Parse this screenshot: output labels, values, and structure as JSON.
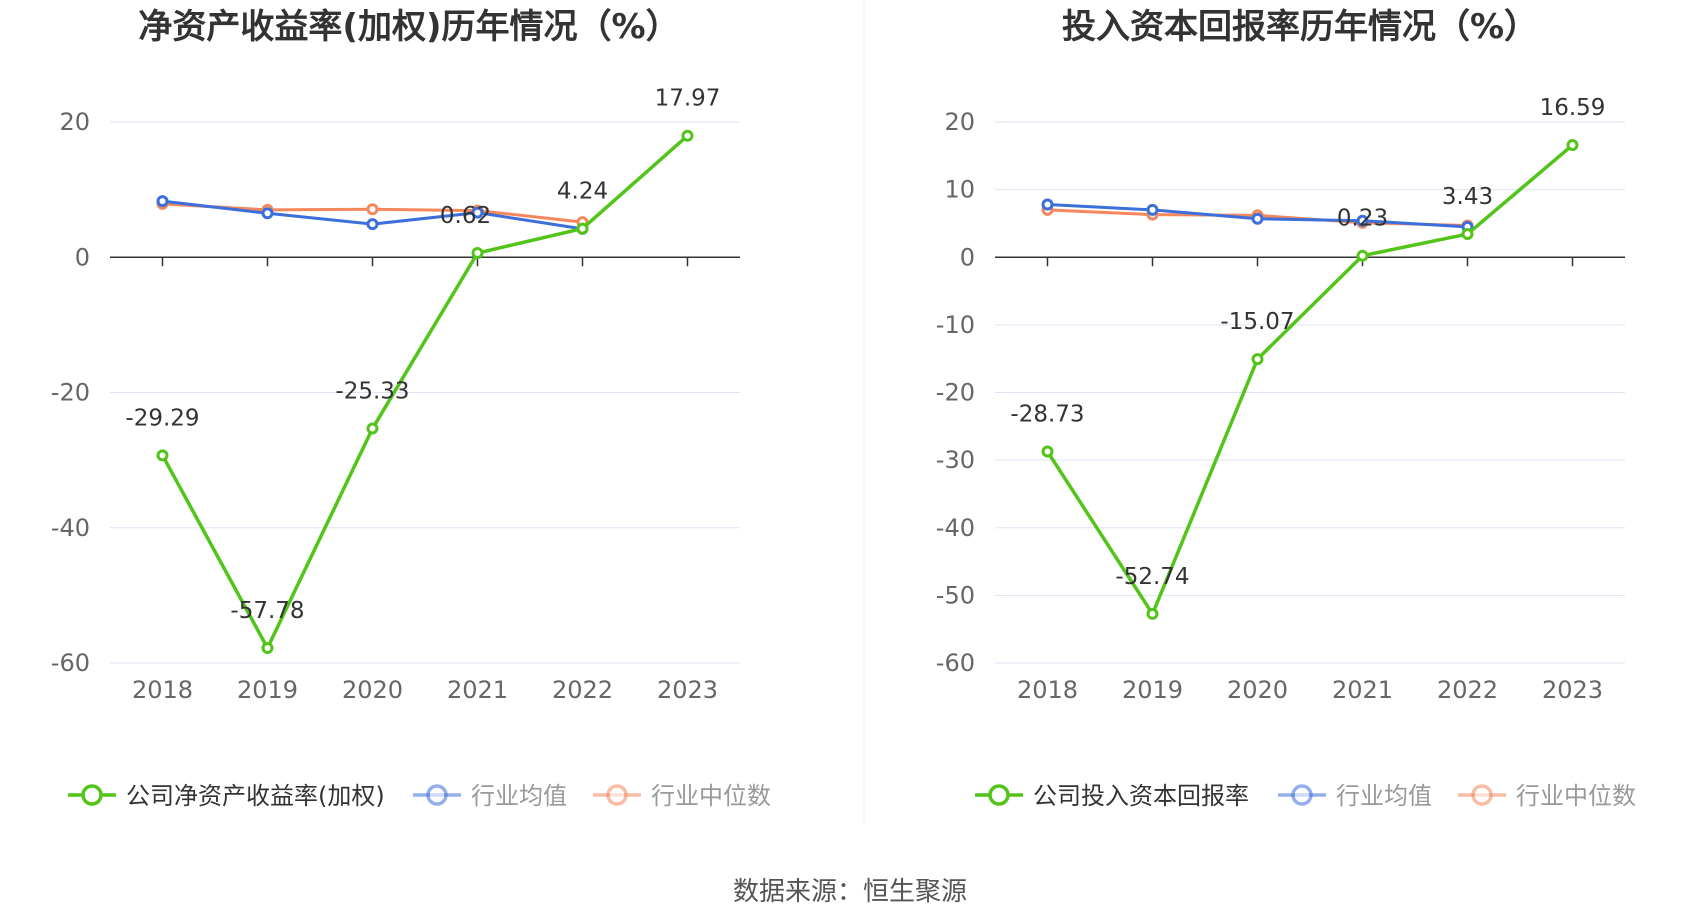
{
  "source_text": "数据来源：恒生聚源",
  "colors": {
    "company": "#52c41a",
    "average": "#3d6fdb",
    "median": "#f5875c",
    "grid": "#dde3f0",
    "axis": "#333333"
  },
  "chart_data": [
    {
      "type": "line",
      "title": "净资产收益率(加权)历年情况（%）",
      "categories": [
        "2018",
        "2019",
        "2020",
        "2021",
        "2022",
        "2023"
      ],
      "ylim": [
        -60,
        20
      ],
      "yticks": [
        20,
        0,
        -20,
        -40,
        -60
      ],
      "grid": true,
      "legend_position": "bottom",
      "series": [
        {
          "name": "公司净资产收益率(加权)",
          "color": "#52c41a",
          "values": [
            -29.29,
            -57.78,
            -25.33,
            0.62,
            4.24,
            17.97
          ],
          "labels": [
            "-29.29",
            "-57.78",
            "-25.33",
            "0.62",
            "4.24",
            "17.97"
          ]
        },
        {
          "name": "行业均值",
          "color": "#3d6fdb",
          "values": [
            8.3,
            6.5,
            4.9,
            6.6,
            4.2,
            null
          ]
        },
        {
          "name": "行业中位数",
          "color": "#f5875c",
          "values": [
            7.9,
            7.0,
            7.1,
            6.9,
            5.2,
            null
          ]
        }
      ]
    },
    {
      "type": "line",
      "title": "投入资本回报率历年情况（%）",
      "categories": [
        "2018",
        "2019",
        "2020",
        "2021",
        "2022",
        "2023"
      ],
      "ylim": [
        -60,
        20
      ],
      "yticks": [
        20,
        10,
        0,
        -10,
        -20,
        -30,
        -40,
        -50,
        -60
      ],
      "grid": true,
      "legend_position": "bottom",
      "series": [
        {
          "name": "公司投入资本回报率",
          "color": "#52c41a",
          "values": [
            -28.73,
            -52.74,
            -15.07,
            0.23,
            3.43,
            16.59
          ],
          "labels": [
            "-28.73",
            "-52.74",
            "-15.07",
            "0.23",
            "3.43",
            "16.59"
          ]
        },
        {
          "name": "行业均值",
          "color": "#3d6fdb",
          "values": [
            7.8,
            7.0,
            5.7,
            5.4,
            4.5,
            null
          ]
        },
        {
          "name": "行业中位数",
          "color": "#f5875c",
          "values": [
            7.0,
            6.3,
            6.2,
            5.1,
            4.7,
            null
          ]
        }
      ]
    }
  ]
}
